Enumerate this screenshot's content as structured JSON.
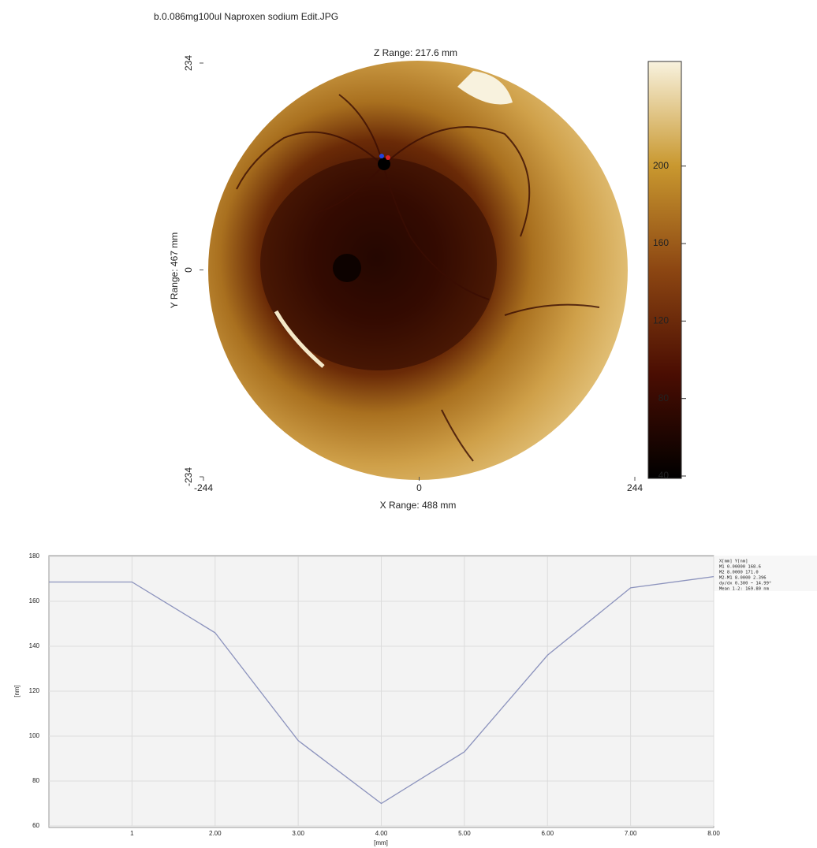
{
  "title": "b.0.086mg100ul Naproxen sodium Edit.JPG",
  "chart_data": [
    {
      "type": "heatmap",
      "title": "Z Range:  217.6 mm",
      "x_label": "X Range: 488 mm",
      "y_label": "Y Range: 467 mm",
      "xlim": [
        -244,
        244
      ],
      "xticks": [
        -244,
        0,
        244
      ],
      "ylim": [
        -234,
        234
      ],
      "yticks": [
        -234,
        0,
        234
      ],
      "colorbar_lim": [
        40,
        254
      ],
      "colorbar_ticks": [
        40,
        80,
        120,
        160,
        200
      ]
    },
    {
      "type": "line",
      "x_label": "[mm]",
      "y_label": "[nm]",
      "x": [
        0,
        1,
        2,
        3,
        4,
        5,
        6,
        7,
        8
      ],
      "series": [
        {
          "color": "#8c93bd",
          "values": [
            168.6,
            168.6,
            146,
            98,
            70,
            93,
            136,
            166,
            171
          ]
        }
      ],
      "xlim": [
        0,
        8
      ],
      "xticks": [
        1,
        {
          "value": 2,
          "label": "2.00"
        },
        {
          "value": 3,
          "label": "3.00"
        },
        {
          "value": 4,
          "label": "4.00"
        },
        {
          "value": 5,
          "label": "5.00"
        },
        {
          "value": 6,
          "label": "6.00"
        },
        {
          "value": 7,
          "label": "7.00"
        },
        {
          "value": 8,
          "label": "8.00"
        }
      ],
      "ylim": [
        60,
        180
      ],
      "yticks": [
        60,
        80,
        100,
        120,
        140,
        160,
        180
      ],
      "grid": true,
      "annotations": [
        "X[mm]   Y[nm]",
        "M1   0.00000   168.6",
        "M2   8.0000    171.0",
        "M2-M1  8.0000   2.396",
        "dy/dx 0.300 ~  14.99°",
        "Mean 1-2:  169.80 nm"
      ]
    }
  ]
}
